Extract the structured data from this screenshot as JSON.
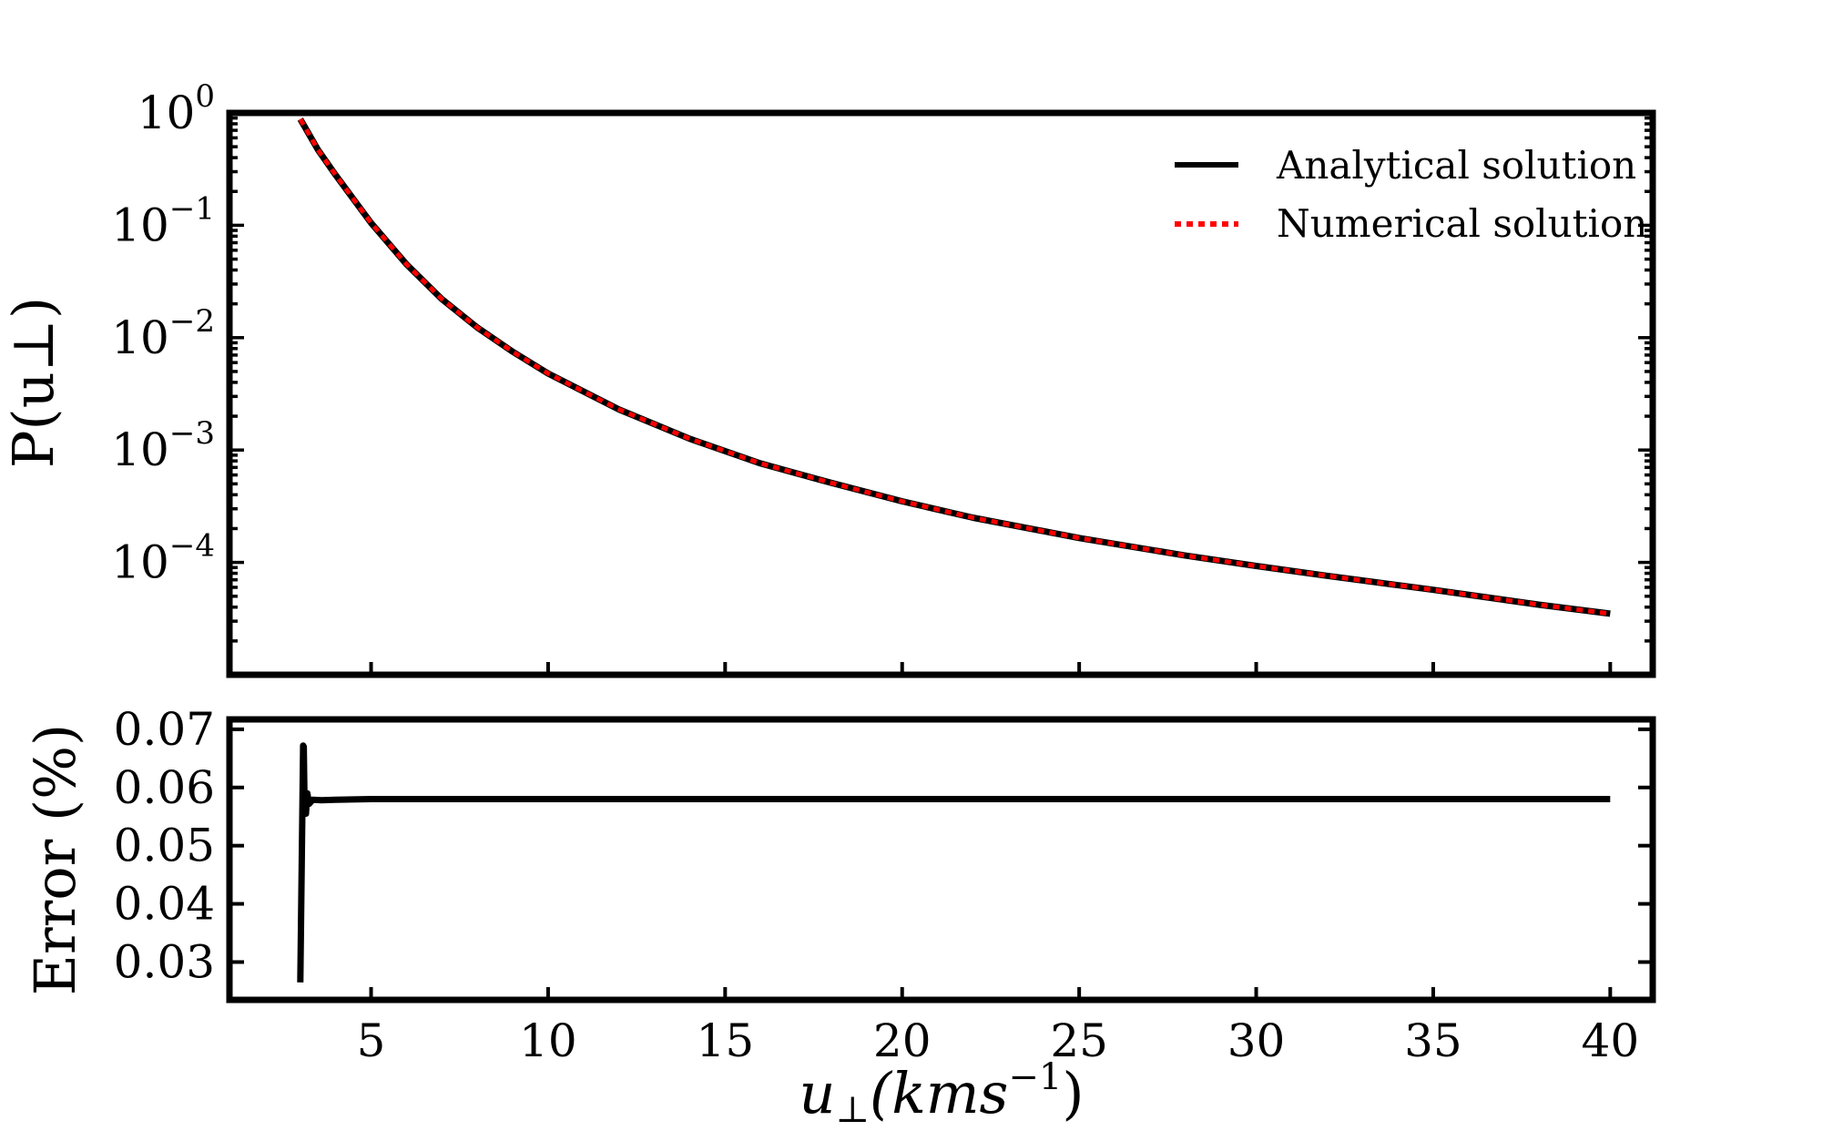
{
  "chart_data": [
    {
      "type": "line",
      "panel": "top",
      "ylabel": "P(u⊥)",
      "yscale": "log",
      "ylim": [
        1e-05,
        1
      ],
      "xlim": [
        1,
        41.2
      ],
      "yticks": [
        {
          "value": 1,
          "base": "10",
          "exp": "0"
        },
        {
          "value": 0.1,
          "base": "10",
          "exp": "−1"
        },
        {
          "value": 0.01,
          "base": "10",
          "exp": "−2"
        },
        {
          "value": 0.001,
          "base": "10",
          "exp": "−3"
        },
        {
          "value": 0.0001,
          "base": "10",
          "exp": "−4"
        }
      ],
      "legend": {
        "placement": "top-right"
      },
      "series": [
        {
          "name": "Analytical solution",
          "color": "#000000",
          "style": "solid",
          "x": [
            3.0,
            3.5,
            4,
            5,
            6,
            7,
            8,
            9,
            10,
            12,
            14,
            16,
            18,
            20,
            22,
            25,
            28,
            30,
            32,
            35,
            38,
            40
          ],
          "y": [
            0.88,
            0.47,
            0.28,
            0.105,
            0.045,
            0.022,
            0.0123,
            0.0075,
            0.0048,
            0.0023,
            0.00126,
            0.00076,
            0.00051,
            0.00035,
            0.00025,
            0.000165,
            0.000115,
            9.3e-05,
            7.6e-05,
            5.7e-05,
            4.2e-05,
            3.5e-05
          ]
        },
        {
          "name": "Numerical solution",
          "color": "#ff0000",
          "style": "dotted",
          "x": [
            3.0,
            3.5,
            4,
            5,
            6,
            7,
            8,
            9,
            10,
            12,
            14,
            16,
            18,
            20,
            22,
            25,
            28,
            30,
            32,
            35,
            38,
            40
          ],
          "y": [
            0.88,
            0.47,
            0.28,
            0.105,
            0.045,
            0.022,
            0.0123,
            0.0075,
            0.0048,
            0.0023,
            0.00126,
            0.00076,
            0.00051,
            0.00035,
            0.00025,
            0.000165,
            0.000115,
            9.3e-05,
            7.6e-05,
            5.7e-05,
            4.2e-05,
            3.5e-05
          ]
        }
      ]
    },
    {
      "type": "line",
      "panel": "bottom",
      "xlabel": {
        "base": "u",
        "sub": "⊥",
        "main": "(kms",
        "exp": "−1",
        "close": ")"
      },
      "ylabel": "Error (%)",
      "xlim": [
        1,
        41.2
      ],
      "ylim": [
        0.0235,
        0.0717
      ],
      "xticks": [
        "5",
        "10",
        "15",
        "20",
        "25",
        "30",
        "35",
        "40"
      ],
      "yticks": [
        "0.03",
        "0.04",
        "0.05",
        "0.06",
        "0.07"
      ],
      "series": [
        {
          "color": "#000000",
          "style": "solid",
          "x": [
            3.0,
            3.08,
            3.1,
            3.12,
            3.16,
            3.2,
            3.25,
            3.35,
            3.6,
            4,
            5,
            10,
            20,
            30,
            40
          ],
          "y": [
            0.0265,
            0.0672,
            0.067,
            0.0575,
            0.0555,
            0.059,
            0.0572,
            0.0579,
            0.0578,
            0.0579,
            0.058,
            0.058,
            0.058,
            0.058,
            0.058
          ]
        }
      ]
    }
  ]
}
